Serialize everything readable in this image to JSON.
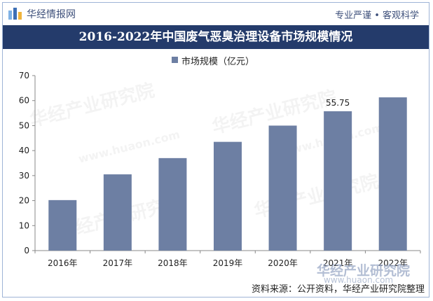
{
  "header": {
    "brand": "华经情报网",
    "slogan": "专业严谨 • 客观科学"
  },
  "chart_data": {
    "type": "bar",
    "title": "2016-2022年中国废气恶臭治理设备市场规模情况",
    "categories": [
      "2016年",
      "2017年",
      "2018年",
      "2019年",
      "2020年",
      "2021年",
      "2022年"
    ],
    "series": [
      {
        "name": "市场规模（亿元）",
        "values": [
          20.2,
          30.5,
          37.0,
          43.5,
          50.0,
          55.75,
          61.3
        ]
      }
    ],
    "data_labels": [
      null,
      null,
      null,
      null,
      null,
      "55.75",
      null
    ],
    "ylim": [
      0,
      70
    ],
    "yticks": [
      0,
      10,
      20,
      30,
      40,
      50,
      60,
      70
    ],
    "xlabel": "",
    "ylabel": "",
    "legend": "top-center",
    "grid": false,
    "bar_color": "#6d7fa3"
  },
  "footer": {
    "source": "资料来源：公开资料，华经产业研究院整理"
  },
  "watermark": {
    "text": "华经产业研究院",
    "url_text": "www.huaon.com"
  },
  "colors": {
    "title_bg": "#243b6b",
    "frame": "#9fb4d6",
    "bar": "#6d7fa3"
  }
}
